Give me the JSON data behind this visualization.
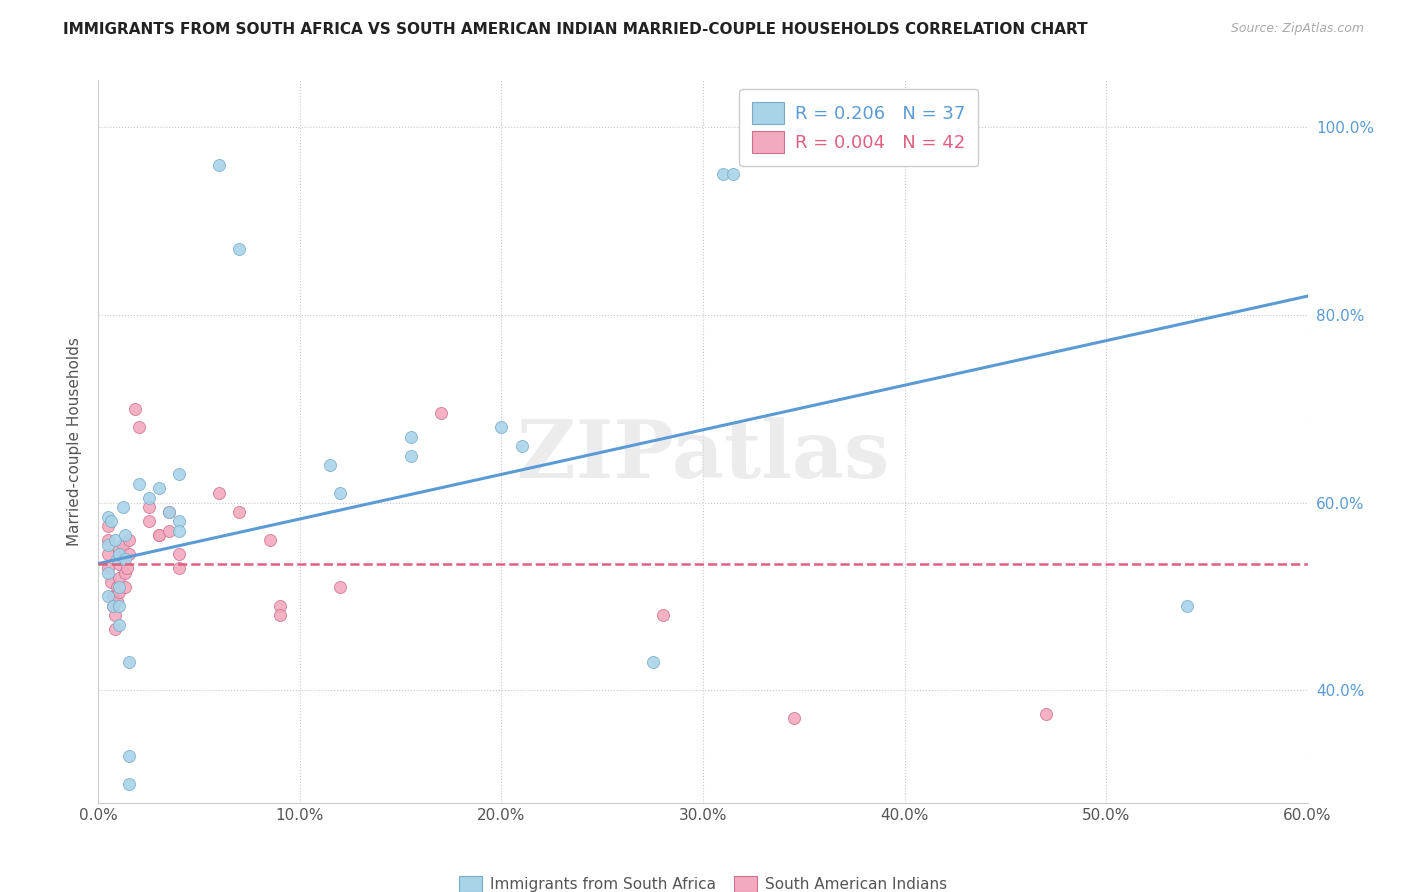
{
  "title": "IMMIGRANTS FROM SOUTH AFRICA VS SOUTH AMERICAN INDIAN MARRIED-COUPLE HOUSEHOLDS CORRELATION CHART",
  "source": "Source: ZipAtlas.com",
  "ylabel": "Married-couple Households",
  "xticklabels": [
    "0.0%",
    "10.0%",
    "20.0%",
    "30.0%",
    "40.0%",
    "50.0%",
    "60.0%"
  ],
  "ytick_vals": [
    0.4,
    0.6,
    0.8,
    1.0
  ],
  "ytick_labels": [
    "40.0%",
    "60.0%",
    "80.0%",
    "100.0%"
  ],
  "xlim": [
    0.0,
    0.6
  ],
  "ylim": [
    0.28,
    1.05
  ],
  "legend_r1": "R = 0.206",
  "legend_n1": "N = 37",
  "legend_r2": "R = 0.004",
  "legend_n2": "N = 42",
  "color_blue": "#a8d4e8",
  "color_pink": "#f4aabe",
  "trendline_blue": "#5b9bd5",
  "trendline_pink": "#e06080",
  "watermark": "ZIPatlas",
  "blue_dots": [
    [
      0.005,
      0.585
    ],
    [
      0.005,
      0.555
    ],
    [
      0.005,
      0.525
    ],
    [
      0.005,
      0.5
    ],
    [
      0.006,
      0.58
    ],
    [
      0.007,
      0.49
    ],
    [
      0.008,
      0.56
    ],
    [
      0.009,
      0.54
    ],
    [
      0.01,
      0.545
    ],
    [
      0.01,
      0.51
    ],
    [
      0.01,
      0.49
    ],
    [
      0.01,
      0.47
    ],
    [
      0.012,
      0.595
    ],
    [
      0.013,
      0.565
    ],
    [
      0.013,
      0.54
    ],
    [
      0.015,
      0.43
    ],
    [
      0.015,
      0.33
    ],
    [
      0.015,
      0.3
    ],
    [
      0.02,
      0.62
    ],
    [
      0.025,
      0.605
    ],
    [
      0.03,
      0.615
    ],
    [
      0.035,
      0.59
    ],
    [
      0.04,
      0.63
    ],
    [
      0.04,
      0.58
    ],
    [
      0.04,
      0.57
    ],
    [
      0.06,
      0.96
    ],
    [
      0.07,
      0.87
    ],
    [
      0.115,
      0.64
    ],
    [
      0.12,
      0.61
    ],
    [
      0.155,
      0.67
    ],
    [
      0.155,
      0.65
    ],
    [
      0.2,
      0.68
    ],
    [
      0.21,
      0.66
    ],
    [
      0.275,
      0.43
    ],
    [
      0.31,
      0.95
    ],
    [
      0.315,
      0.95
    ],
    [
      0.54,
      0.49
    ]
  ],
  "pink_dots": [
    [
      0.005,
      0.575
    ],
    [
      0.005,
      0.56
    ],
    [
      0.005,
      0.545
    ],
    [
      0.005,
      0.53
    ],
    [
      0.006,
      0.515
    ],
    [
      0.007,
      0.5
    ],
    [
      0.007,
      0.49
    ],
    [
      0.008,
      0.48
    ],
    [
      0.008,
      0.465
    ],
    [
      0.009,
      0.51
    ],
    [
      0.009,
      0.495
    ],
    [
      0.01,
      0.55
    ],
    [
      0.01,
      0.535
    ],
    [
      0.01,
      0.52
    ],
    [
      0.01,
      0.505
    ],
    [
      0.012,
      0.555
    ],
    [
      0.012,
      0.54
    ],
    [
      0.013,
      0.525
    ],
    [
      0.013,
      0.51
    ],
    [
      0.014,
      0.53
    ],
    [
      0.015,
      0.56
    ],
    [
      0.015,
      0.545
    ],
    [
      0.018,
      0.7
    ],
    [
      0.02,
      0.68
    ],
    [
      0.025,
      0.595
    ],
    [
      0.025,
      0.58
    ],
    [
      0.03,
      0.565
    ],
    [
      0.03,
      0.565
    ],
    [
      0.035,
      0.59
    ],
    [
      0.035,
      0.57
    ],
    [
      0.04,
      0.545
    ],
    [
      0.04,
      0.53
    ],
    [
      0.06,
      0.61
    ],
    [
      0.07,
      0.59
    ],
    [
      0.085,
      0.56
    ],
    [
      0.09,
      0.49
    ],
    [
      0.09,
      0.48
    ],
    [
      0.12,
      0.51
    ],
    [
      0.17,
      0.695
    ],
    [
      0.28,
      0.48
    ],
    [
      0.345,
      0.37
    ],
    [
      0.47,
      0.375
    ]
  ],
  "blue_trend_x": [
    0.0,
    0.6
  ],
  "blue_trend_y": [
    0.535,
    0.82
  ],
  "pink_trend_x": [
    0.0,
    0.6
  ],
  "pink_trend_y": [
    0.535,
    0.535
  ]
}
